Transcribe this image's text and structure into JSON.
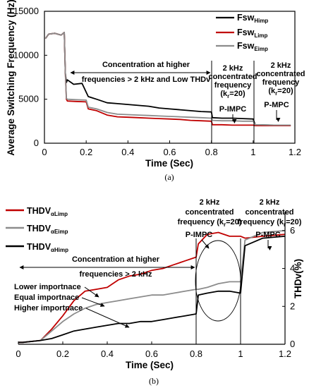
{
  "chart_data": [
    {
      "panel": "a",
      "type": "line",
      "caption": "(a)",
      "xlabel": "Time (Sec)",
      "ylabel": "Average Switching Frequency (Hz)",
      "xlim": [
        0,
        1.2
      ],
      "ylim": [
        0,
        15000
      ],
      "xticks": [
        "0",
        "0.2",
        "0.4",
        "0.6",
        "0.8",
        "1",
        "1.2"
      ],
      "yticks": [
        "0",
        "5000",
        "10000",
        "15000"
      ],
      "legend_position": "top-right",
      "series": [
        {
          "name": "Fsw",
          "subscript": "Himp",
          "color": "#000000",
          "x": [
            0.005,
            0.02,
            0.05,
            0.08,
            0.095,
            0.1,
            0.105,
            0.11,
            0.14,
            0.18,
            0.2,
            0.21,
            0.25,
            0.3,
            0.35,
            0.4,
            0.45,
            0.5,
            0.55,
            0.6,
            0.65,
            0.7,
            0.75,
            0.8,
            0.805,
            0.85,
            0.9,
            0.95,
            1.0,
            1.01,
            1.1,
            1.18
          ],
          "y": [
            11900,
            12400,
            12500,
            12300,
            12600,
            8000,
            6900,
            7200,
            6700,
            6800,
            5800,
            5300,
            5000,
            4600,
            4500,
            4400,
            4300,
            4200,
            4000,
            3900,
            3800,
            3700,
            3600,
            3550,
            2900,
            2850,
            2850,
            2800,
            2750,
            2100,
            2050,
            2000
          ]
        },
        {
          "name": "Fsw",
          "subscript": "Limp",
          "color": "#c00000",
          "x": [
            0.005,
            0.02,
            0.05,
            0.08,
            0.095,
            0.1,
            0.105,
            0.11,
            0.15,
            0.2,
            0.21,
            0.25,
            0.3,
            0.35,
            0.4,
            0.45,
            0.5,
            0.55,
            0.6,
            0.65,
            0.7,
            0.75,
            0.8,
            0.805,
            0.85,
            0.9,
            0.95,
            1.0,
            1.01,
            1.1,
            1.18
          ],
          "y": [
            11900,
            12400,
            12500,
            12300,
            12600,
            8000,
            5000,
            4800,
            4750,
            4700,
            3900,
            3700,
            3200,
            3000,
            2950,
            2900,
            2850,
            2800,
            2750,
            2700,
            2600,
            2550,
            2500,
            2100,
            2100,
            2050,
            2050,
            2050,
            2000,
            2000,
            2000
          ]
        },
        {
          "name": "Fsw",
          "subscript": "Eimp",
          "color": "#8c8c8c",
          "x": [
            0.005,
            0.02,
            0.05,
            0.08,
            0.095,
            0.1,
            0.105,
            0.11,
            0.15,
            0.2,
            0.21,
            0.25,
            0.3,
            0.35,
            0.4,
            0.45,
            0.5,
            0.55,
            0.6,
            0.65,
            0.7,
            0.75,
            0.8,
            0.805,
            0.85,
            0.9,
            0.95,
            1.0,
            1.01,
            1.1,
            1.18
          ],
          "y": [
            11900,
            12400,
            12500,
            12300,
            12600,
            8000,
            5100,
            5000,
            4950,
            4900,
            4100,
            3900,
            3500,
            3300,
            3250,
            3200,
            3150,
            3100,
            3050,
            3000,
            2950,
            2900,
            2850,
            2600,
            2550,
            2550,
            2500,
            2500,
            2100,
            2050,
            2050
          ]
        }
      ],
      "annotations": {
        "concentration": [
          "Concentration at higher",
          "frequencies > 2 kHz and Low THDv"
        ],
        "pimpc": [
          "2 kHz",
          "concentrated",
          "frequency",
          "(k",
          "r",
          "=20)",
          "P-IMPC"
        ],
        "pmpc": [
          "2 kHz",
          "concentrated",
          "frequency",
          "(k",
          "r",
          "=20)",
          "P-MPC"
        ]
      }
    },
    {
      "panel": "b",
      "type": "line",
      "caption": "(b)",
      "xlabel": "Time (Sec)",
      "ylabel": "THDv(%)",
      "xlim": [
        0,
        1.2
      ],
      "ylim": [
        0,
        7
      ],
      "xticks": [
        "0",
        "0.2",
        "0.4",
        "0.6",
        "0.8",
        "1",
        "1.2"
      ],
      "yticks": [
        "0",
        "2",
        "4",
        "6"
      ],
      "y_axis_side": "right",
      "legend_position": "top-left",
      "series": [
        {
          "name": "THDV",
          "subscript": "αLimp",
          "color": "#c00000",
          "x": [
            0.0,
            0.02,
            0.1,
            0.15,
            0.2,
            0.25,
            0.3,
            0.35,
            0.4,
            0.45,
            0.5,
            0.55,
            0.6,
            0.65,
            0.7,
            0.75,
            0.8,
            0.81,
            0.85,
            0.9,
            0.95,
            1.0,
            1.02,
            1.1,
            1.2
          ],
          "y": [
            0.1,
            0.1,
            0.2,
            0.8,
            1.5,
            2.3,
            2.8,
            2.9,
            3.0,
            3.4,
            3.6,
            3.7,
            3.9,
            4.0,
            4.2,
            4.4,
            4.6,
            5.3,
            5.8,
            5.9,
            5.7,
            5.7,
            5.6,
            5.7,
            5.8
          ]
        },
        {
          "name": "THDV",
          "subscript": "αEimp",
          "color": "#8c8c8c",
          "x": [
            0.0,
            0.02,
            0.1,
            0.15,
            0.2,
            0.25,
            0.3,
            0.35,
            0.4,
            0.45,
            0.5,
            0.55,
            0.6,
            0.65,
            0.7,
            0.75,
            0.8,
            0.81,
            0.85,
            0.9,
            0.95,
            1.0,
            1.02,
            1.1,
            1.2
          ],
          "y": [
            0.1,
            0.1,
            0.2,
            0.7,
            1.2,
            1.6,
            1.9,
            2.1,
            2.2,
            2.3,
            2.4,
            2.5,
            2.6,
            2.6,
            2.7,
            2.8,
            2.9,
            2.9,
            3.0,
            3.2,
            3.3,
            3.3,
            5.5,
            5.9,
            6.0
          ]
        },
        {
          "name": "THDV",
          "subscript": "αHimp",
          "color": "#000000",
          "x": [
            0.0,
            0.02,
            0.1,
            0.15,
            0.2,
            0.25,
            0.3,
            0.35,
            0.4,
            0.45,
            0.5,
            0.55,
            0.6,
            0.65,
            0.7,
            0.75,
            0.8,
            0.81,
            0.85,
            0.9,
            0.95,
            1.0,
            1.02,
            1.1,
            1.2
          ],
          "y": [
            0.1,
            0.1,
            0.2,
            0.3,
            0.5,
            0.7,
            0.8,
            0.9,
            1.0,
            1.1,
            1.1,
            1.2,
            1.2,
            1.3,
            1.4,
            1.5,
            1.6,
            2.6,
            2.7,
            2.8,
            2.8,
            2.7,
            5.2,
            5.6,
            5.7
          ]
        }
      ],
      "annotations": {
        "concentration": [
          "Concentration at higher",
          "frequencies > 2 kHz"
        ],
        "importance": [
          "Lower importnace",
          "Equal importnace",
          "Higher importnace"
        ],
        "pimpc": [
          "2 kHz",
          "concentrated",
          "frequency (k",
          "r",
          "=20)",
          "P-IMPC"
        ],
        "pmpc": [
          "2 kHz",
          "concentrated",
          "frequency (k",
          "r",
          "=20)",
          "P-MPC"
        ]
      }
    }
  ]
}
